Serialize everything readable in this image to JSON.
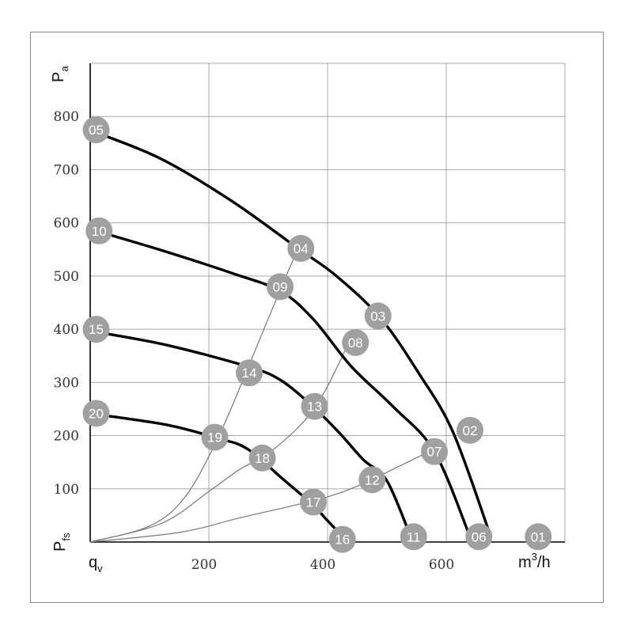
{
  "chart_data": {
    "type": "line",
    "xlabel": "q",
    "xlabel_sub": "v",
    "xunit_base": "m",
    "xunit_exp": "3",
    "xunit_tail": "/h",
    "ylabel": "P",
    "ylabel_sub": "a",
    "ylabel_bottom": "P",
    "ylabel_bottom_sub": "fs",
    "xlim": [
      0,
      800
    ],
    "ylim": [
      0,
      900
    ],
    "xticks": [
      200,
      400,
      600
    ],
    "yticks": [
      100,
      200,
      300,
      400,
      500,
      600,
      700,
      800
    ],
    "grid": true,
    "colors": {
      "curve": "#000000",
      "system_line": "#777777",
      "marker": "#a0a0a0",
      "grid": "#a8a8a8"
    },
    "series": [
      {
        "x": [
          10,
          120,
          240,
          350,
          415,
          490,
          555,
          612,
          675
        ],
        "y": [
          770,
          720,
          640,
          552,
          500,
          420,
          315,
          205,
          10
        ]
      },
      {
        "x": [
          10,
          130,
          240,
          320,
          375,
          440,
          510,
          580,
          640
        ],
        "y": [
          585,
          545,
          505,
          472,
          420,
          330,
          255,
          170,
          10
        ]
      },
      {
        "x": [
          10,
          130,
          265,
          320,
          375,
          420,
          460,
          500,
          540
        ],
        "y": [
          395,
          370,
          330,
          305,
          255,
          205,
          155,
          115,
          10
        ]
      },
      {
        "x": [
          10,
          130,
          215,
          265,
          325,
          375,
          400,
          430
        ],
        "y": [
          240,
          220,
          195,
          175,
          118,
          70,
          40,
          5
        ]
      }
    ],
    "system_lines": [
      {
        "x": [
          0,
          100,
          160,
          215,
          265,
          300,
          350
        ],
        "y": [
          0,
          30,
          85,
          195,
          325,
          420,
          552
        ]
      },
      {
        "x": [
          0,
          120,
          200,
          250,
          310,
          380,
          440
        ],
        "y": [
          0,
          35,
          95,
          135,
          175,
          255,
          385
        ]
      },
      {
        "x": [
          0,
          150,
          250,
          340,
          400,
          460,
          580
        ],
        "y": [
          0,
          18,
          45,
          68,
          85,
          110,
          175
        ]
      }
    ],
    "points": [
      {
        "label": "01",
        "x": 755,
        "y": 10
      },
      {
        "label": "02",
        "x": 640,
        "y": 210
      },
      {
        "label": "03",
        "x": 485,
        "y": 425
      },
      {
        "label": "04",
        "x": 355,
        "y": 552
      },
      {
        "label": "05",
        "x": 10,
        "y": 775
      },
      {
        "label": "06",
        "x": 655,
        "y": 10
      },
      {
        "label": "07",
        "x": 580,
        "y": 170
      },
      {
        "label": "08",
        "x": 447,
        "y": 375
      },
      {
        "label": "09",
        "x": 320,
        "y": 480
      },
      {
        "label": "10",
        "x": 15,
        "y": 585
      },
      {
        "label": "11",
        "x": 545,
        "y": 10
      },
      {
        "label": "12",
        "x": 475,
        "y": 117
      },
      {
        "label": "13",
        "x": 378,
        "y": 255
      },
      {
        "label": "14",
        "x": 268,
        "y": 318
      },
      {
        "label": "15",
        "x": 10,
        "y": 400
      },
      {
        "label": "16",
        "x": 425,
        "y": 5
      },
      {
        "label": "17",
        "x": 376,
        "y": 75
      },
      {
        "label": "18",
        "x": 290,
        "y": 158
      },
      {
        "label": "19",
        "x": 210,
        "y": 197
      },
      {
        "label": "20",
        "x": 10,
        "y": 242
      }
    ]
  }
}
